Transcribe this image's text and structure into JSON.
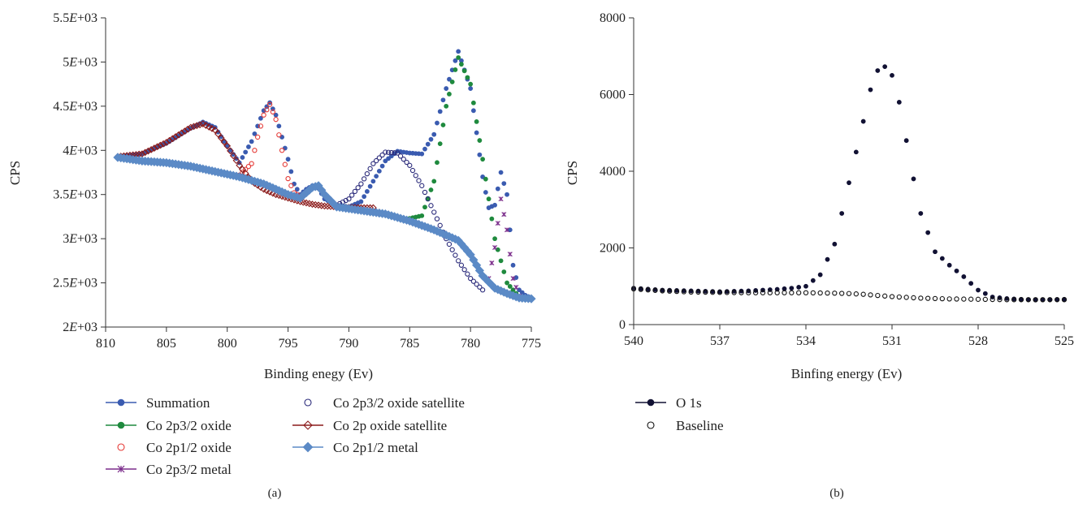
{
  "chart_data": [
    {
      "type": "scatter",
      "panel_label": "(a)",
      "xlabel": "Binding enegy (Ev)",
      "ylabel": "CPS",
      "xlim": [
        810,
        775
      ],
      "ylim": [
        2000,
        5500
      ],
      "x_reversed": true,
      "xticks": [
        810,
        805,
        800,
        795,
        790,
        785,
        780,
        775
      ],
      "yticks": [
        2000,
        2500,
        3000,
        3500,
        4000,
        4500,
        5000,
        5500
      ],
      "ytick_labels": [
        "2E+03",
        "2.5E+03",
        "3E+03",
        "3.5E+03",
        "4E+03",
        "4.5E+03",
        "5E+03",
        "5.5E+03"
      ],
      "grid": false,
      "legend_position": "bottom",
      "series": [
        {
          "name": "Summation",
          "color": "#3a5bb0",
          "marker": "filled-circle",
          "x": [
            809,
            807,
            805,
            803,
            802,
            801,
            800,
            799,
            798,
            797,
            796.5,
            796,
            795,
            794.5,
            794,
            793.5,
            793,
            792.5,
            792,
            791,
            790,
            789,
            788,
            787,
            786,
            785,
            784,
            783,
            782,
            781,
            780,
            779,
            778.5,
            778,
            777.5,
            777,
            776.5,
            776,
            775.5,
            775
          ],
          "y": [
            3930,
            3960,
            4080,
            4250,
            4320,
            4260,
            4050,
            3860,
            4100,
            4450,
            4540,
            4400,
            3900,
            3620,
            3500,
            3560,
            3600,
            3570,
            3450,
            3380,
            3360,
            3420,
            3650,
            3880,
            3990,
            3970,
            3960,
            4180,
            4700,
            5120,
            4700,
            3700,
            3350,
            3380,
            3750,
            3500,
            2700,
            2420,
            2360,
            2330
          ]
        },
        {
          "name": "Co 2p3/2 oxide",
          "color": "#1f8a3e",
          "marker": "filled-circle",
          "x": [
            785,
            784,
            783,
            782,
            781,
            780,
            779,
            778,
            777,
            776,
            775
          ],
          "y": [
            3230,
            3260,
            3650,
            4500,
            5050,
            4750,
            3900,
            3000,
            2500,
            2340,
            2320
          ]
        },
        {
          "name": "Co 2p1/2 oxide",
          "color": "#e53935",
          "marker": "open-circle",
          "x": [
            799,
            798,
            797.5,
            797,
            796.5,
            796,
            795.5,
            795,
            794.5,
            794
          ],
          "y": [
            3720,
            3850,
            4150,
            4400,
            4520,
            4350,
            4000,
            3680,
            3520,
            3480
          ]
        },
        {
          "name": "Co 2p3/2 metal",
          "color": "#7b2d8b",
          "marker": "star",
          "x": [
            778.5,
            778,
            777.5,
            777,
            776.5,
            776
          ],
          "y": [
            2550,
            2900,
            3450,
            3100,
            2550,
            2350
          ]
        },
        {
          "name": "Co 2p3/2 oxide satellite",
          "color": "#2a2a7a",
          "marker": "open-circle",
          "x": [
            791,
            790,
            789,
            788,
            787,
            786,
            785,
            784,
            783,
            782,
            781,
            780,
            779
          ],
          "y": [
            3380,
            3450,
            3620,
            3850,
            3980,
            3970,
            3830,
            3600,
            3300,
            3000,
            2750,
            2550,
            2420
          ]
        },
        {
          "name": "Co 2p oxide satellite",
          "color": "#8b1a1a",
          "marker": "diamond",
          "x": [
            809,
            807,
            805,
            803,
            802,
            801,
            800,
            799,
            798,
            797,
            796,
            795,
            794,
            793,
            792,
            791,
            790,
            789,
            788
          ],
          "y": [
            3930,
            3960,
            4090,
            4260,
            4300,
            4230,
            4050,
            3830,
            3650,
            3560,
            3500,
            3460,
            3420,
            3390,
            3370,
            3360,
            3355,
            3350,
            3350
          ]
        },
        {
          "name": "Co 2p1/2 metal",
          "color": "#5b8ac6",
          "marker": "filled-diamond",
          "x": [
            809,
            807,
            805,
            803,
            801,
            799,
            797,
            795,
            794,
            793.5,
            793,
            792.5,
            792,
            791,
            789,
            787,
            785,
            783,
            781,
            780,
            779,
            778,
            777,
            776,
            775
          ],
          "y": [
            3920,
            3880,
            3860,
            3820,
            3760,
            3700,
            3620,
            3500,
            3460,
            3520,
            3580,
            3600,
            3500,
            3360,
            3320,
            3280,
            3200,
            3100,
            2980,
            2820,
            2580,
            2440,
            2380,
            2330,
            2320
          ]
        }
      ]
    },
    {
      "type": "scatter",
      "panel_label": "(b)",
      "xlabel": "Binfing energy (Ev)",
      "ylabel": "CPS",
      "xlim": [
        540,
        525
      ],
      "ylim": [
        0,
        8000
      ],
      "x_reversed": true,
      "xticks": [
        540,
        537,
        534,
        531,
        528,
        525
      ],
      "yticks": [
        0,
        2000,
        4000,
        6000,
        8000
      ],
      "ytick_labels": [
        "0",
        "2000",
        "4000",
        "6000",
        "8000"
      ],
      "grid": false,
      "legend_position": "bottom-left",
      "series": [
        {
          "name": "O 1s",
          "color": "#111133",
          "marker": "filled-circle",
          "x": [
            540,
            539,
            538,
            537,
            536,
            535,
            534.5,
            534,
            533.5,
            533,
            532.5,
            532,
            531.8,
            531.6,
            531.4,
            531.2,
            531,
            530.8,
            530.6,
            530.4,
            530.2,
            530,
            529.5,
            529,
            528.5,
            528,
            527.5,
            527,
            526,
            525.5,
            525
          ],
          "y": [
            950,
            900,
            880,
            860,
            880,
            920,
            950,
            1000,
            1300,
            2100,
            3700,
            5300,
            6000,
            6500,
            6750,
            6720,
            6500,
            6000,
            5200,
            4400,
            3600,
            2900,
            1900,
            1550,
            1250,
            900,
            720,
            680,
            640,
            650,
            660
          ]
        },
        {
          "name": "Baseline",
          "color": "#111111",
          "marker": "open-circle",
          "x": [
            540,
            539,
            538,
            537,
            536,
            535,
            534,
            533,
            532.5,
            532,
            531.5,
            531,
            530.5,
            530,
            529,
            528,
            527,
            526,
            525
          ],
          "y": [
            930,
            880,
            850,
            840,
            830,
            830,
            830,
            820,
            810,
            790,
            760,
            730,
            710,
            690,
            670,
            660,
            650,
            650,
            650
          ]
        }
      ]
    }
  ]
}
